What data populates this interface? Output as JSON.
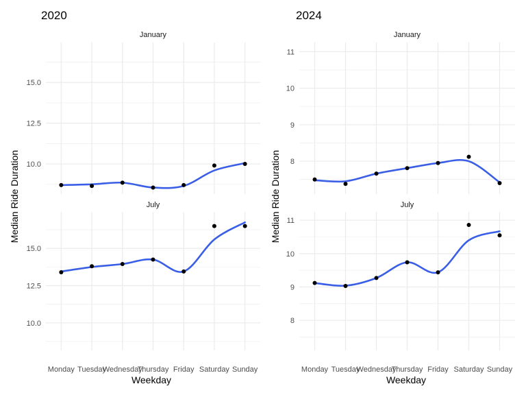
{
  "charts": [
    {
      "title": "2020",
      "xlabel": "Weekday",
      "ylabel": "Median Ride Duration",
      "yticks": [
        10.0,
        12.5,
        15.0
      ],
      "ytick_labels": [
        "10.0",
        "12.5",
        "15.0"
      ],
      "ylim": [
        8.15,
        17.45
      ]
    },
    {
      "title": "2024",
      "xlabel": "Weekday",
      "ylabel": "Median Ride Duration",
      "yticks": [
        8,
        9,
        10,
        11
      ],
      "ytick_labels": [
        "8",
        "9",
        "10",
        "11"
      ],
      "ylim": [
        7.1,
        11.25
      ]
    }
  ],
  "colors": {
    "smooth": "#3a5fe6",
    "point": "#000000",
    "grid": "#ebebeb",
    "text": "#4d4d4d"
  },
  "chart_data": [
    {
      "type": "scatter",
      "title": "2020",
      "xlabel": "Weekday",
      "ylabel": "Median Ride Duration",
      "categories": [
        "Monday",
        "Tuesday",
        "Wednesday",
        "Thursday",
        "Friday",
        "Saturday",
        "Sunday"
      ],
      "panels": [
        {
          "name": "January",
          "points": [
            8.7,
            8.65,
            8.85,
            8.55,
            8.7,
            9.9,
            10.0
          ],
          "smooth": [
            8.7,
            8.75,
            8.85,
            8.55,
            8.65,
            9.6,
            10.05
          ]
        },
        {
          "name": "July",
          "points": [
            13.4,
            13.8,
            13.95,
            14.25,
            13.45,
            16.5,
            16.5
          ],
          "smooth": [
            13.45,
            13.75,
            13.95,
            14.25,
            13.45,
            15.6,
            16.75
          ]
        }
      ],
      "ylim": [
        8.15,
        17.45
      ],
      "grid": true
    },
    {
      "type": "scatter",
      "title": "2024",
      "xlabel": "Weekday",
      "ylabel": "Median Ride Duration",
      "categories": [
        "Monday",
        "Tuesday",
        "Wednesday",
        "Thursday",
        "Friday",
        "Saturday",
        "Sunday"
      ],
      "panels": [
        {
          "name": "January",
          "points": [
            7.5,
            7.38,
            7.66,
            7.81,
            7.95,
            8.12,
            7.4
          ],
          "smooth": [
            7.48,
            7.45,
            7.66,
            7.81,
            7.95,
            8.0,
            7.42
          ]
        },
        {
          "name": "July",
          "points": [
            9.12,
            9.03,
            9.27,
            9.74,
            9.44,
            10.86,
            10.55
          ],
          "smooth": [
            9.12,
            9.04,
            9.27,
            9.74,
            9.44,
            10.4,
            10.67
          ]
        }
      ],
      "ylim": [
        7.1,
        11.25
      ],
      "grid": true
    }
  ]
}
